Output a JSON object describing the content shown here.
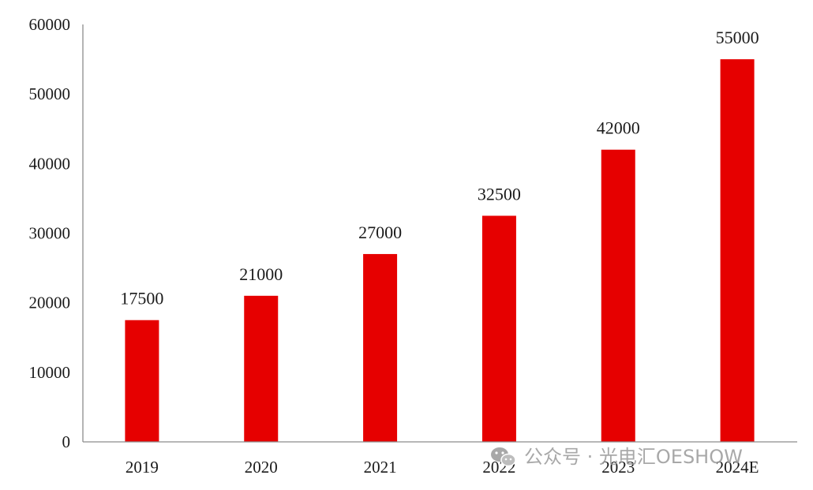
{
  "chart_data": {
    "type": "bar",
    "categories": [
      "2019",
      "2020",
      "2021",
      "2022",
      "2023",
      "2024E"
    ],
    "values": [
      17500,
      21000,
      27000,
      32500,
      42000,
      55000
    ],
    "data_labels": [
      "17500",
      "21000",
      "27000",
      "32500",
      "42000",
      "55000"
    ],
    "title": "",
    "xlabel": "",
    "ylabel": "",
    "ylim": [
      0,
      60000
    ],
    "yticks": [
      0,
      10000,
      20000,
      30000,
      40000,
      50000,
      60000
    ],
    "ytick_labels": [
      "0",
      "10000",
      "20000",
      "30000",
      "40000",
      "50000",
      "60000"
    ],
    "grid": false,
    "legend": "none",
    "bar_color": "#e60000"
  },
  "watermark": {
    "text": "公众号 · 光电汇OESHOW",
    "icon": "wechat-icon",
    "color": "#9a9a9a"
  }
}
